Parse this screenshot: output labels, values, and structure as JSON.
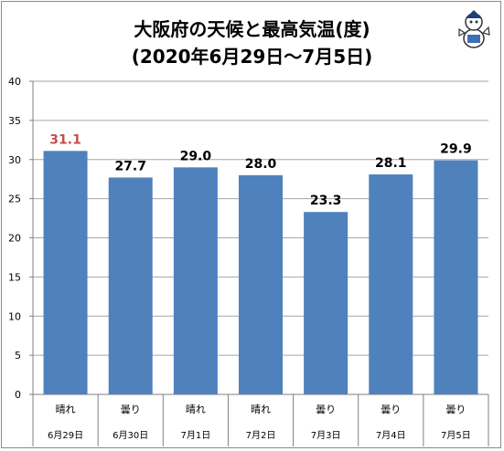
{
  "chart_data": {
    "type": "bar",
    "title": "大阪府の天候と最高気温(度)",
    "subtitle": "(2020年6月29日～7月5日)",
    "categories": [
      "6月29日",
      "6月30日",
      "7月1日",
      "7月2日",
      "7月3日",
      "7月4日",
      "7月5日"
    ],
    "weather": [
      "晴れ",
      "曇り",
      "晴れ",
      "晴れ",
      "曇り",
      "曇り",
      "曇り"
    ],
    "values": [
      31.1,
      27.7,
      29.0,
      28.0,
      23.3,
      28.1,
      29.9
    ],
    "value_labels": [
      "31.1",
      "27.7",
      "29.0",
      "28.0",
      "23.3",
      "28.1",
      "29.9"
    ],
    "highlight_index": 0,
    "ylim": [
      0,
      40
    ],
    "yticks": [
      0,
      5,
      10,
      15,
      20,
      25,
      30,
      35,
      40
    ],
    "grid": true,
    "colors": {
      "bar": "#4f81bd",
      "highlight_label": "#c0504d",
      "label": "#000000",
      "grid": "#a6a6a6"
    }
  }
}
